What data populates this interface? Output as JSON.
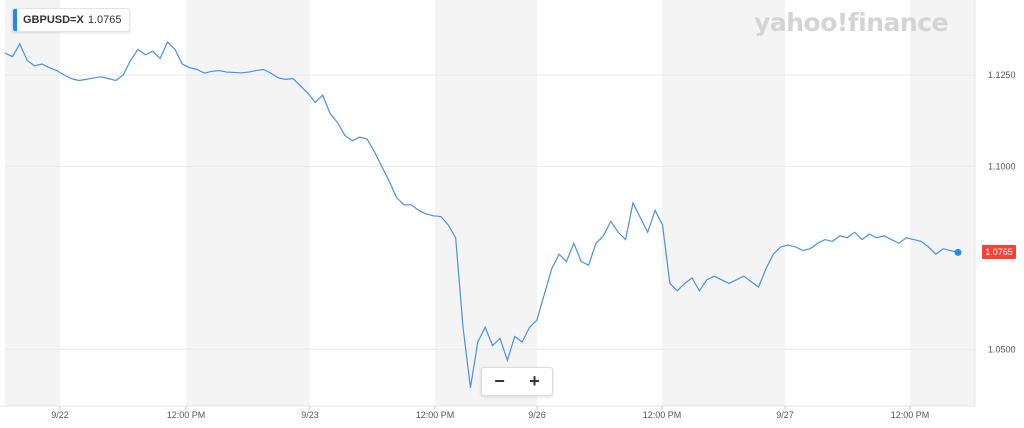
{
  "legend": {
    "symbol": "GBPUSD=X",
    "value": "1.0765",
    "color": "#1a8ff0"
  },
  "brand": {
    "text": "yahoo!finance"
  },
  "zoom": {
    "minus_label": "−",
    "plus_label": "+"
  },
  "chart_data": {
    "type": "line",
    "x_tick_labels": [
      "9/22",
      "12:00 PM",
      "9/23",
      "12:00 PM",
      "9/26",
      "12:00 PM",
      "9/27",
      "12:00 PM"
    ],
    "y_ticks": [
      "1.1250",
      "1.1000",
      "1.0500"
    ],
    "y_tick_values": [
      1.125,
      1.1,
      1.05
    ],
    "ylim": [
      1.0345,
      1.1455
    ],
    "grid": true,
    "last_price_label": "1.0765",
    "last_price_color": "#f44336",
    "line_color": "#4a90e2",
    "series": [
      {
        "values": [
          1.131,
          1.13,
          1.1335,
          1.129,
          1.1275,
          1.128,
          1.127,
          1.1262,
          1.125,
          1.124,
          1.1235,
          1.1238,
          1.1242,
          1.1245,
          1.124,
          1.1235,
          1.125,
          1.129,
          1.132,
          1.1305,
          1.1315,
          1.1295,
          1.134,
          1.132,
          1.128,
          1.127,
          1.1265,
          1.1255,
          1.126,
          1.1262,
          1.1258,
          1.1257,
          1.1256,
          1.1258,
          1.1262,
          1.1265,
          1.1255,
          1.1242,
          1.1238,
          1.124,
          1.122,
          1.12,
          1.1175,
          1.1195,
          1.1145,
          1.112,
          1.1085,
          1.107,
          1.108,
          1.1075,
          1.104,
          1.1,
          1.096,
          1.0915,
          1.0895,
          1.0895,
          1.088,
          1.087,
          1.0865,
          1.0863,
          1.084,
          1.0805,
          1.056,
          1.0395,
          1.052,
          1.056,
          1.051,
          1.053,
          1.047,
          1.0535,
          1.052,
          1.056,
          1.058,
          1.065,
          1.072,
          1.076,
          1.074,
          1.079,
          1.074,
          1.073,
          1.079,
          1.081,
          1.085,
          1.082,
          1.08,
          1.09,
          1.086,
          1.082,
          1.088,
          1.084,
          1.068,
          1.066,
          1.068,
          1.0695,
          1.066,
          1.069,
          1.07,
          1.069,
          1.068,
          1.069,
          1.07,
          1.0685,
          1.067,
          1.072,
          1.076,
          1.078,
          1.0785,
          1.078,
          1.077,
          1.0775,
          1.079,
          1.08,
          1.0795,
          1.081,
          1.0805,
          1.082,
          1.08,
          1.0815,
          1.0805,
          1.081,
          1.08,
          1.079,
          1.0805,
          1.08,
          1.0795,
          1.078,
          1.076,
          1.0775,
          1.077,
          1.0765
        ]
      }
    ]
  }
}
